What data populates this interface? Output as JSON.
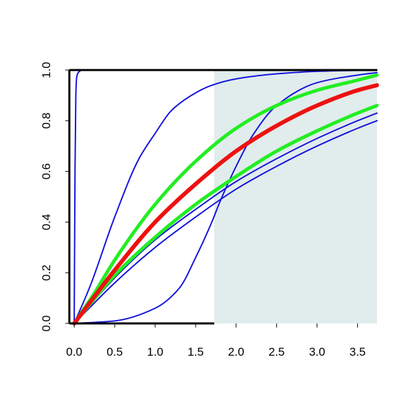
{
  "chart_data": {
    "type": "line",
    "title": "",
    "xlabel": "",
    "ylabel": "",
    "xlim": [
      -0.06,
      3.74
    ],
    "ylim": [
      0.0,
      1.0
    ],
    "x_ticks": [
      "0.0",
      "0.5",
      "1.0",
      "1.5",
      "2.0",
      "2.5",
      "3.0",
      "3.5"
    ],
    "y_ticks": [
      "0.0",
      "0.2",
      "0.4",
      "0.6",
      "0.8",
      "1.0"
    ],
    "grid": false,
    "legend": "none",
    "shaded_region": {
      "x_from": 1.73,
      "x_to": 3.74,
      "y_from": 0.0,
      "y_to": 1.0,
      "color": "#e1ecec"
    },
    "colors": {
      "blue": "#1414dd",
      "green": "#22ee22",
      "red": "#ee1111",
      "axis": "#000000"
    },
    "series": [
      {
        "color": "blue",
        "x": [
          0.0,
          0.01,
          0.02,
          0.03,
          0.05,
          0.1,
          0.2,
          3.74
        ],
        "y": [
          0.0,
          0.6,
          0.9,
          0.97,
          0.99,
          1.0,
          1.0,
          1.0
        ]
      },
      {
        "color": "blue",
        "x": [
          0.0,
          0.2,
          0.5,
          0.8,
          1.0,
          1.2,
          1.5,
          1.7,
          2.0,
          2.5,
          3.0,
          3.74
        ],
        "y": [
          0.0,
          0.15,
          0.42,
          0.65,
          0.75,
          0.84,
          0.91,
          0.94,
          0.965,
          0.985,
          0.995,
          1.0
        ]
      },
      {
        "color": "blue",
        "x": [
          0.0,
          0.5,
          1.0,
          1.3,
          1.5,
          1.7,
          1.8,
          2.0,
          2.2,
          2.5,
          3.0,
          3.5,
          3.74
        ],
        "y": [
          0.0,
          0.01,
          0.06,
          0.14,
          0.26,
          0.4,
          0.48,
          0.62,
          0.74,
          0.86,
          0.95,
          0.98,
          0.99
        ]
      },
      {
        "color": "blue",
        "x": [
          0.0,
          0.5,
          1.0,
          1.5,
          2.0,
          2.5,
          3.0,
          3.5,
          3.74
        ],
        "y": [
          0.0,
          0.16,
          0.3,
          0.42,
          0.53,
          0.62,
          0.7,
          0.77,
          0.8
        ]
      },
      {
        "color": "blue",
        "x": [
          0.0,
          0.5,
          1.0,
          1.5,
          2.0,
          2.5,
          3.0,
          3.5,
          3.74
        ],
        "y": [
          0.0,
          0.18,
          0.33,
          0.45,
          0.56,
          0.65,
          0.73,
          0.8,
          0.83
        ]
      },
      {
        "color": "green",
        "x": [
          0.0,
          0.25,
          0.5,
          1.0,
          1.5,
          2.0,
          2.5,
          3.0,
          3.5,
          3.74
        ],
        "y": [
          0.0,
          0.12,
          0.25,
          0.47,
          0.64,
          0.77,
          0.86,
          0.92,
          0.96,
          0.98
        ]
      },
      {
        "color": "green",
        "x": [
          0.0,
          0.5,
          1.0,
          1.5,
          2.0,
          2.5,
          3.0,
          3.5,
          3.74
        ],
        "y": [
          0.0,
          0.19,
          0.34,
          0.47,
          0.58,
          0.68,
          0.76,
          0.83,
          0.86
        ]
      },
      {
        "color": "red",
        "x": [
          0.0,
          0.5,
          1.0,
          1.5,
          2.0,
          2.5,
          3.0,
          3.5,
          3.74
        ],
        "y": [
          0.0,
          0.21,
          0.4,
          0.55,
          0.68,
          0.78,
          0.86,
          0.92,
          0.94
        ]
      }
    ]
  }
}
